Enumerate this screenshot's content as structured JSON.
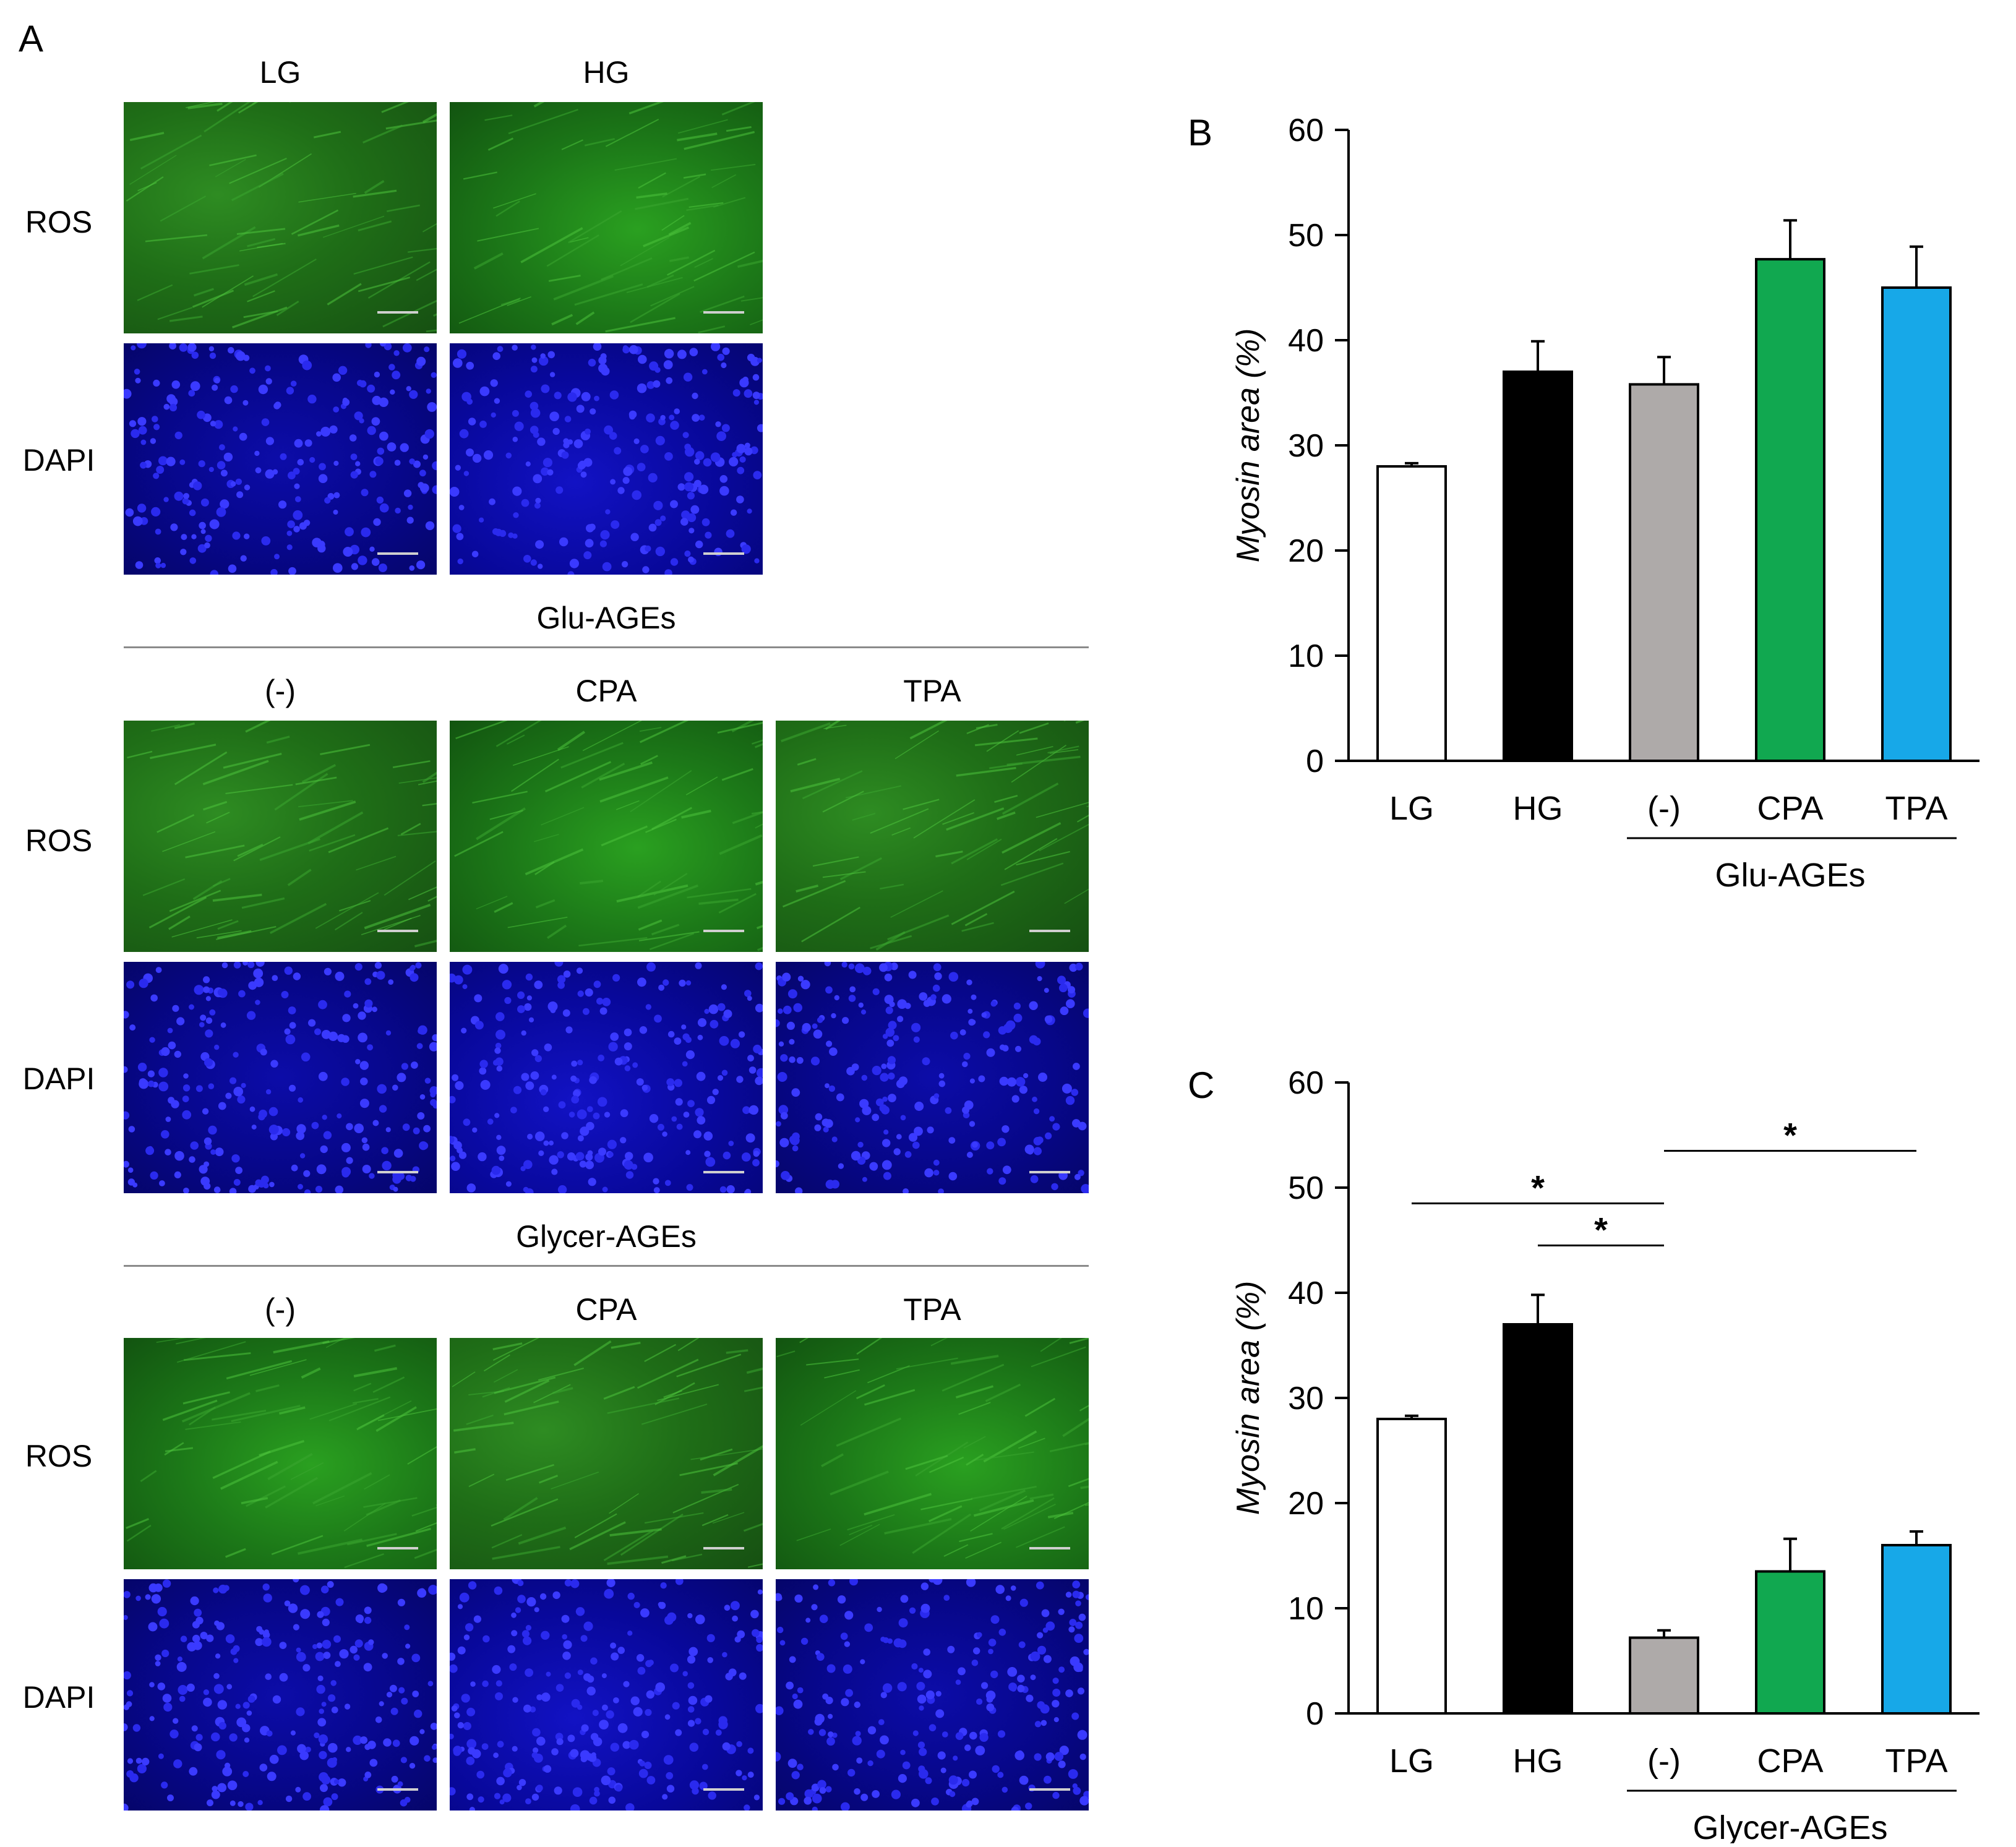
{
  "panel_a": {
    "letter": "A",
    "rows": {
      "ros": "ROS",
      "dapi": "DAPI"
    },
    "control_columns": [
      "LG",
      "HG"
    ],
    "groups": [
      {
        "title": "Glu-AGEs",
        "columns": [
          "(-)",
          "CPA",
          "TPA"
        ]
      },
      {
        "title": "Glycer-AGEs",
        "columns": [
          "(-)",
          "CPA",
          "TPA"
        ]
      }
    ]
  },
  "colors": {
    "LG": "#ffffff",
    "HG": "#000000",
    "neg": "#aeaaa9",
    "CPA": "#11a850",
    "TPA": "#17a8e8",
    "ros": "#1f7a1a",
    "dapi": "#07078c"
  },
  "chart_data": [
    {
      "panel": "B",
      "type": "bar",
      "title": "",
      "categories": [
        "LG",
        "HG",
        "(-)",
        "CPA",
        "TPA"
      ],
      "values": [
        28.0,
        37.0,
        35.8,
        47.7,
        45.0
      ],
      "errors": [
        0.3,
        2.9,
        2.6,
        3.7,
        3.9
      ],
      "ylabel": "Myosin area (%)",
      "xlabel": "",
      "ylim": [
        0,
        60
      ],
      "yticks": [
        0,
        10,
        20,
        30,
        40,
        50,
        60
      ],
      "group_label": "Glu-AGEs",
      "group_span": [
        2,
        4
      ],
      "significance": []
    },
    {
      "panel": "C",
      "type": "bar",
      "title": "",
      "categories": [
        "LG",
        "HG",
        "(-)",
        "CPA",
        "TPA"
      ],
      "values": [
        28.0,
        37.0,
        7.2,
        13.5,
        16.0
      ],
      "errors": [
        0.3,
        2.8,
        0.7,
        3.1,
        1.3
      ],
      "ylabel": "Myosin area (%)",
      "xlabel": "",
      "ylim": [
        0,
        60
      ],
      "yticks": [
        0,
        10,
        20,
        30,
        40,
        50,
        60
      ],
      "group_label": "Glycer-AGEs",
      "group_span": [
        2,
        4
      ],
      "significance": [
        {
          "from": 0,
          "to": 2,
          "y": 48.5,
          "label": "*"
        },
        {
          "from": 1,
          "to": 2,
          "y": 44.5,
          "label": "*"
        },
        {
          "from": 2,
          "to": 4,
          "y": 53.5,
          "label": "*"
        }
      ]
    }
  ]
}
